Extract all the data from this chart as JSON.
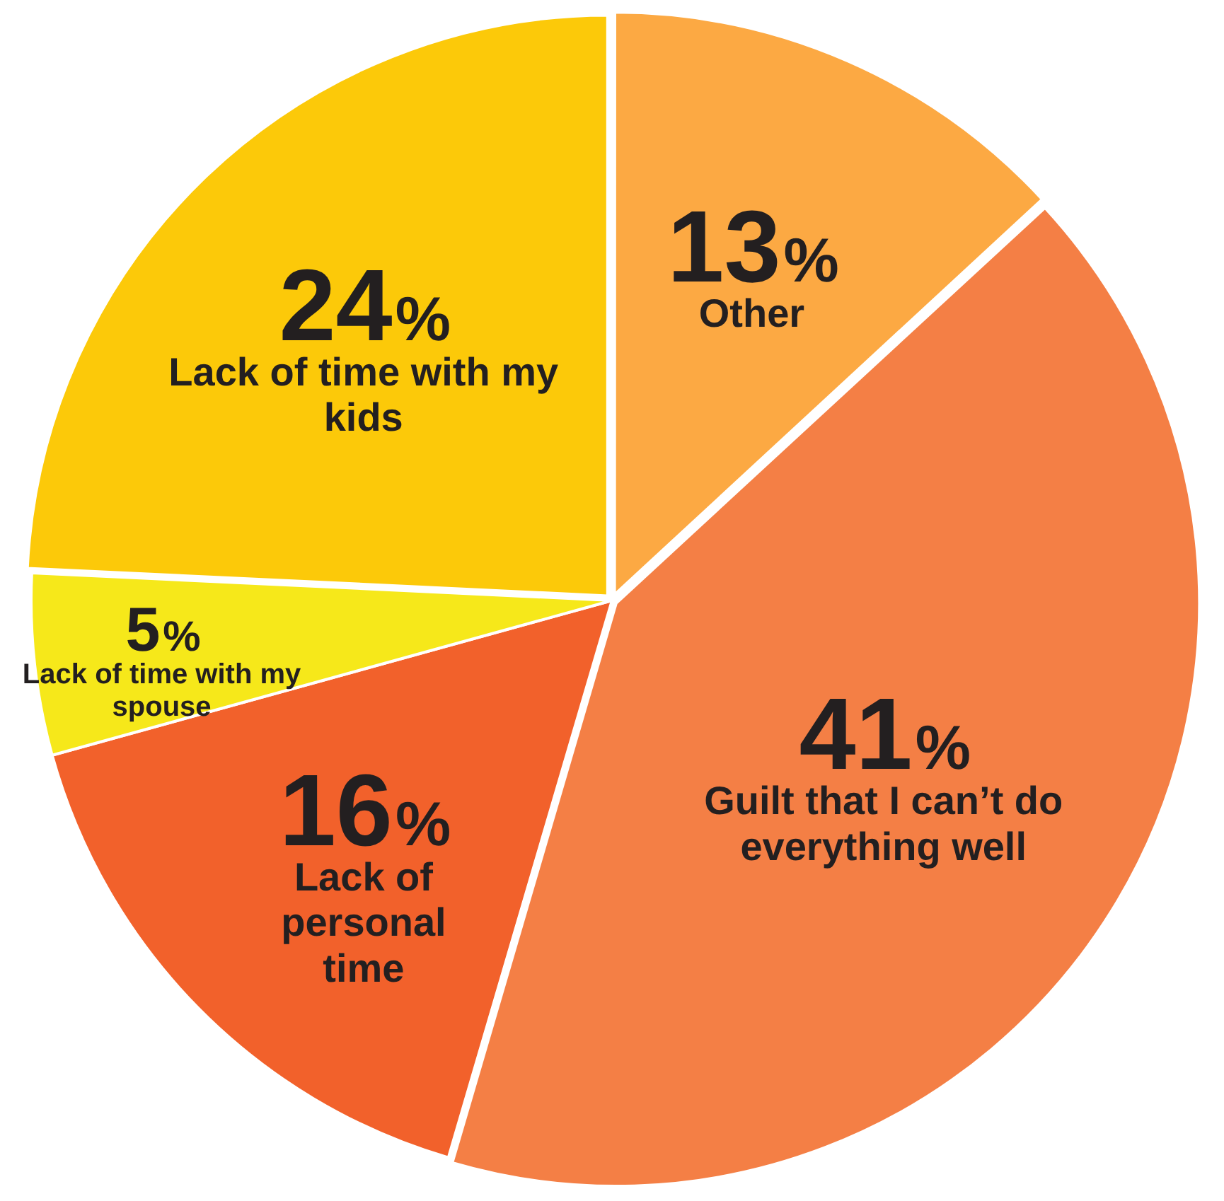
{
  "chart_data": {
    "type": "pie",
    "categories": [
      "Other",
      "Guilt that I can’t do everything well",
      "Lack of personal time",
      "Lack of time with my spouse",
      "Lack of time with my kids"
    ],
    "values": [
      13,
      41,
      16,
      5,
      24
    ],
    "value_labels": [
      "13%",
      "41%",
      "16%",
      "5%",
      "24%"
    ],
    "colors": [
      "#fca943",
      "#f47f45",
      "#f2612b",
      "#f6e81a",
      "#fcc909"
    ],
    "legend": false
  }
}
